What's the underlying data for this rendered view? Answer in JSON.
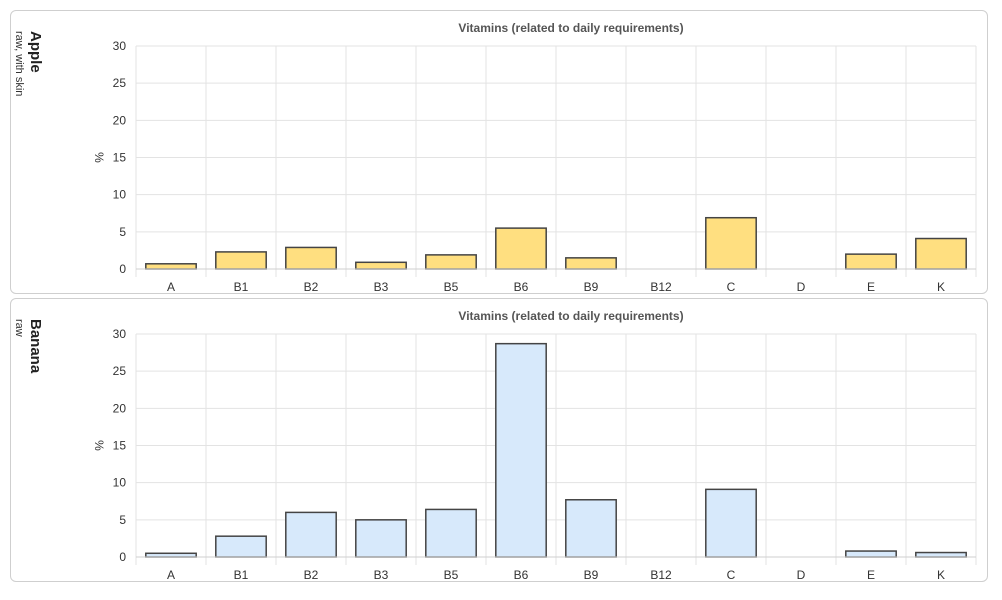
{
  "panels": [
    {
      "fruit": "Apple",
      "subtitle": "raw, with skin",
      "chart_data": {
        "type": "bar",
        "title": "Vitamins (related to daily requirements)",
        "ylabel": "%",
        "xlabel": "",
        "ylim": [
          0,
          30
        ],
        "yticks": [
          0,
          5,
          10,
          15,
          20,
          25,
          30
        ],
        "categories": [
          "A",
          "B1",
          "B2",
          "B3",
          "B5",
          "B6",
          "B9",
          "B12",
          "C",
          "D",
          "E",
          "K"
        ],
        "values": [
          0.7,
          2.3,
          2.9,
          0.9,
          1.9,
          5.5,
          1.5,
          0,
          6.9,
          0,
          2.0,
          4.1
        ],
        "bar_color": "#ffdf80",
        "grid": true
      }
    },
    {
      "fruit": "Banana",
      "subtitle": "raw",
      "chart_data": {
        "type": "bar",
        "title": "Vitamins (related to daily requirements)",
        "ylabel": "%",
        "xlabel": "",
        "ylim": [
          0,
          30
        ],
        "yticks": [
          0,
          5,
          10,
          15,
          20,
          25,
          30
        ],
        "categories": [
          "A",
          "B1",
          "B2",
          "B3",
          "B5",
          "B6",
          "B9",
          "B12",
          "C",
          "D",
          "E",
          "K"
        ],
        "values": [
          0.5,
          2.8,
          6.0,
          5.0,
          6.4,
          28.7,
          7.7,
          0,
          9.1,
          0,
          0.8,
          0.6
        ],
        "bar_color": "#d7e9fb",
        "grid": true
      }
    }
  ]
}
